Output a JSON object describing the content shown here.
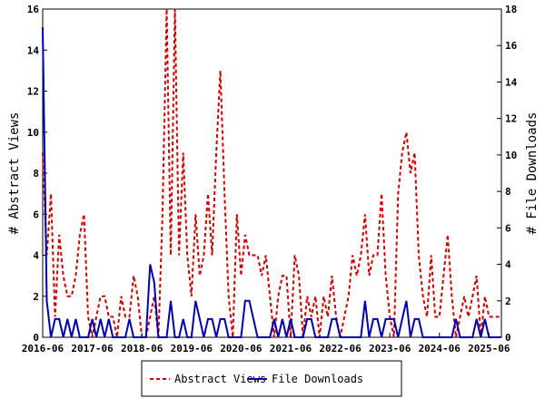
{
  "chart_data": {
    "type": "line",
    "x": [
      "2016-06",
      "2016-07",
      "2016-08",
      "2016-09",
      "2016-10",
      "2016-11",
      "2016-12",
      "2017-01",
      "2017-02",
      "2017-03",
      "2017-04",
      "2017-05",
      "2017-06",
      "2017-07",
      "2017-08",
      "2017-09",
      "2017-10",
      "2017-11",
      "2017-12",
      "2018-01",
      "2018-02",
      "2018-03",
      "2018-04",
      "2018-05",
      "2018-06",
      "2018-07",
      "2018-08",
      "2018-09",
      "2018-10",
      "2018-11",
      "2018-12",
      "2019-01",
      "2019-02",
      "2019-03",
      "2019-04",
      "2019-05",
      "2019-06",
      "2019-07",
      "2019-08",
      "2019-09",
      "2019-10",
      "2019-11",
      "2019-12",
      "2020-01",
      "2020-02",
      "2020-03",
      "2020-04",
      "2020-05",
      "2020-06",
      "2020-07",
      "2020-08",
      "2020-09",
      "2020-10",
      "2020-11",
      "2020-12",
      "2021-01",
      "2021-02",
      "2021-03",
      "2021-04",
      "2021-05",
      "2021-06",
      "2021-07",
      "2021-08",
      "2021-09",
      "2021-10",
      "2021-11",
      "2021-12",
      "2022-01",
      "2022-02",
      "2022-03",
      "2022-04",
      "2022-05",
      "2022-06",
      "2022-07",
      "2022-08",
      "2022-09",
      "2022-10",
      "2022-11",
      "2022-12",
      "2023-01",
      "2023-02",
      "2023-03",
      "2023-04",
      "2023-05",
      "2023-06",
      "2023-07",
      "2023-08",
      "2023-09",
      "2023-10",
      "2023-11",
      "2023-12",
      "2024-01",
      "2024-02",
      "2024-03",
      "2024-04",
      "2024-05",
      "2024-06",
      "2024-07",
      "2024-08",
      "2024-09",
      "2024-10",
      "2024-11",
      "2024-12",
      "2025-01",
      "2025-02",
      "2025-03",
      "2025-04",
      "2025-05",
      "2025-06",
      "2025-07",
      "2025-08",
      "2025-09"
    ],
    "series": [
      {
        "name": "Abstract Views",
        "color": "#cc0000",
        "values": [
          9,
          4,
          7,
          1,
          5,
          3,
          2,
          2,
          3,
          5,
          6,
          1,
          0,
          1,
          2,
          2,
          1,
          1,
          0,
          2,
          1,
          1,
          3,
          2,
          0,
          0,
          1,
          2,
          0,
          6,
          16,
          4,
          16,
          4,
          9,
          4,
          2,
          6,
          3,
          4,
          7,
          4,
          9,
          13,
          7,
          2,
          0,
          6,
          3,
          5,
          4,
          4,
          4,
          3,
          4,
          2,
          0,
          2,
          3,
          3,
          0,
          4,
          3,
          0,
          2,
          1,
          2,
          0,
          2,
          1,
          3,
          1,
          0,
          1,
          2,
          4,
          3,
          4,
          6,
          3,
          4,
          4,
          7,
          3,
          1,
          0,
          7,
          9,
          10,
          8,
          9,
          4,
          2,
          1,
          4,
          1,
          1,
          3,
          5,
          2,
          0,
          1,
          2,
          1,
          2,
          3,
          0,
          2,
          1,
          1,
          1,
          1
        ]
      },
      {
        "name": "File Downloads",
        "color": "#0000aa",
        "axis": "y2",
        "values": [
          17,
          2,
          0,
          1,
          1,
          0,
          1,
          0,
          1,
          0,
          0,
          0,
          1,
          0,
          1,
          0,
          1,
          0,
          0,
          0,
          0,
          1,
          0,
          0,
          0,
          0,
          4,
          3,
          0,
          0,
          0,
          2,
          0,
          0,
          1,
          0,
          0,
          2,
          1,
          0,
          1,
          1,
          0,
          1,
          1,
          0,
          0,
          0,
          0,
          2,
          2,
          1,
          0,
          0,
          0,
          0,
          1,
          0,
          1,
          0,
          1,
          0,
          0,
          0,
          1,
          1,
          0,
          0,
          0,
          0,
          1,
          1,
          0,
          0,
          0,
          0,
          0,
          0,
          2,
          0,
          1,
          1,
          0,
          1,
          1,
          1,
          0,
          1,
          2,
          0,
          1,
          1,
          0,
          0,
          0,
          0,
          0,
          0,
          0,
          0,
          1,
          0,
          0,
          0,
          0,
          1,
          0,
          1,
          0,
          0,
          0,
          0
        ]
      }
    ],
    "ylabel": "# Abstract Views",
    "y2label": "# File Downloads",
    "ylim": [
      0,
      16
    ],
    "yticks": [
      0,
      2,
      4,
      6,
      8,
      10,
      12,
      14,
      16
    ],
    "y2lim": [
      0,
      18
    ],
    "y2ticks": [
      0,
      2,
      4,
      6,
      8,
      10,
      12,
      14,
      16,
      18
    ],
    "xticks": [
      "2016-06",
      "2017-06",
      "2018-06",
      "2019-06",
      "2020-06",
      "2021-06",
      "2022-06",
      "2023-06",
      "2024-06",
      "2025-06"
    ]
  }
}
